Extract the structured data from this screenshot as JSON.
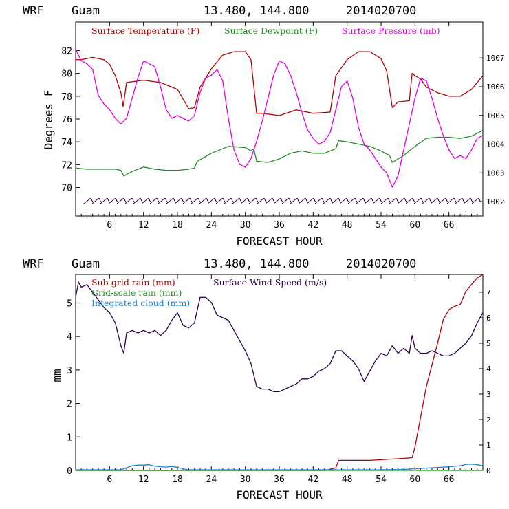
{
  "chart_data": [
    {
      "type": "line",
      "title_left": "WRF",
      "title_place": "Guam",
      "title_coords": "13.480, 144.800",
      "title_date": "2014020700",
      "xlabel": "FORECAST HOUR",
      "ylabel": "Degrees F",
      "xlim": [
        0,
        72
      ],
      "ylim": [
        67.5,
        84.5
      ],
      "ylim_right": [
        1001.5,
        1008.25
      ],
      "x_ticks": [
        6,
        12,
        18,
        24,
        30,
        36,
        42,
        48,
        54,
        60,
        66
      ],
      "y_ticks": [
        70,
        72,
        74,
        76,
        78,
        80,
        82
      ],
      "y_ticks_right": [
        1002,
        1003,
        1004,
        1005,
        1006,
        1007
      ],
      "legend": [
        {
          "label": "Surface Temperature (F)",
          "color": "#b00000"
        },
        {
          "label": "Surface Dewpoint (F)",
          "color": "#228b22"
        },
        {
          "label": "Surface Pressure (mb)",
          "color": "#e000e0"
        }
      ],
      "series": [
        {
          "name": "Surface Temperature (F)",
          "axis": "left",
          "color": "#b00000",
          "x": [
            0,
            1,
            3,
            5,
            6,
            7,
            8,
            8.4,
            9,
            12,
            15,
            18,
            20,
            21,
            22,
            24,
            26,
            28,
            30,
            31,
            32,
            33,
            36,
            39,
            42,
            45,
            46,
            48,
            50,
            52,
            54,
            55,
            56,
            57,
            59,
            59.5,
            60,
            61,
            62,
            64,
            66,
            68,
            70,
            71,
            72
          ],
          "y": [
            81.2,
            81.2,
            81.4,
            81.2,
            80.8,
            79.8,
            78.3,
            77.1,
            79.2,
            79.4,
            79.2,
            78.6,
            76.9,
            77.0,
            78.8,
            80.4,
            81.6,
            81.9,
            81.9,
            81.2,
            76.5,
            76.5,
            76.3,
            76.8,
            76.5,
            76.6,
            79.8,
            81.2,
            81.9,
            81.9,
            81.3,
            80.2,
            77.0,
            77.5,
            77.6,
            80.0,
            79.8,
            79.5,
            78.8,
            78.3,
            78.0,
            78.0,
            78.6,
            79.2,
            79.8
          ]
        },
        {
          "name": "Surface Dewpoint (F)",
          "axis": "left",
          "color": "#228b22",
          "x": [
            0,
            2,
            4,
            6,
            7,
            8,
            8.5,
            10,
            12,
            14,
            16,
            18,
            20,
            21,
            21.5,
            24,
            27,
            30,
            31,
            31.5,
            32,
            34,
            36,
            38,
            40,
            42,
            44,
            46,
            46.5,
            48,
            50,
            52,
            54,
            55.5,
            56,
            58,
            60,
            62,
            64,
            66,
            68,
            70,
            72
          ],
          "y": [
            71.7,
            71.6,
            71.6,
            71.6,
            71.6,
            71.5,
            71.0,
            71.4,
            71.8,
            71.6,
            71.5,
            71.5,
            71.6,
            71.7,
            72.3,
            73.0,
            73.6,
            73.5,
            73.2,
            73.4,
            72.3,
            72.2,
            72.5,
            73.0,
            73.2,
            73.0,
            73.0,
            73.4,
            74.1,
            74.0,
            73.8,
            73.6,
            73.2,
            72.8,
            72.2,
            72.8,
            73.6,
            74.3,
            74.4,
            74.4,
            74.3,
            74.5,
            75.0
          ]
        },
        {
          "name": "Surface Pressure (mb)",
          "axis": "right",
          "color": "#e000e0",
          "x": [
            0,
            0.5,
            1,
            2,
            3,
            4,
            5,
            6,
            7,
            8,
            9,
            10,
            11,
            12,
            13,
            14,
            15,
            16,
            17,
            18,
            19,
            20,
            21,
            22,
            23,
            24,
            25,
            26,
            27,
            28,
            29,
            30,
            31,
            32,
            33,
            34,
            35,
            36,
            37,
            38,
            39,
            40,
            41,
            42,
            43,
            44,
            45,
            46,
            47,
            48,
            49,
            50,
            51,
            52,
            53,
            54,
            55,
            56,
            57,
            58,
            59,
            60,
            61,
            62,
            63,
            64,
            65,
            66,
            67,
            68,
            69,
            70,
            71,
            72
          ],
          "y": [
            1007.3,
            1007.1,
            1006.9,
            1006.8,
            1006.6,
            1005.7,
            1005.4,
            1005.2,
            1004.9,
            1004.7,
            1004.9,
            1005.6,
            1006.3,
            1006.9,
            1006.8,
            1006.7,
            1006.0,
            1005.2,
            1004.9,
            1005.0,
            1004.9,
            1004.8,
            1005.0,
            1005.8,
            1006.3,
            1006.4,
            1006.6,
            1006.2,
            1004.9,
            1003.8,
            1003.3,
            1003.2,
            1003.5,
            1004.1,
            1004.8,
            1005.6,
            1006.4,
            1006.9,
            1006.8,
            1006.4,
            1005.8,
            1005.1,
            1004.5,
            1004.2,
            1004.0,
            1004.1,
            1004.4,
            1005.2,
            1006.0,
            1006.2,
            1005.6,
            1004.6,
            1004.0,
            1003.8,
            1003.5,
            1003.2,
            1003.0,
            1002.5,
            1002.9,
            1003.8,
            1004.7,
            1005.6,
            1006.3,
            1006.2,
            1005.6,
            1004.9,
            1004.3,
            1003.8,
            1003.5,
            1003.6,
            1003.5,
            1003.8,
            1004.2,
            1004.3
          ]
        }
      ]
    },
    {
      "type": "line",
      "title_left": "WRF",
      "title_place": "Guam",
      "title_coords": "13.480, 144.800",
      "title_date": "2014020700",
      "xlabel": "FORECAST HOUR",
      "ylabel": "mm",
      "xlim": [
        0,
        72
      ],
      "ylim": [
        0,
        5.85
      ],
      "ylim_right": [
        0,
        7.7
      ],
      "x_ticks": [
        6,
        12,
        18,
        24,
        30,
        36,
        42,
        48,
        54,
        60,
        66
      ],
      "y_ticks": [
        0,
        1,
        2,
        3,
        4,
        5
      ],
      "y_ticks_right": [
        0,
        1,
        2,
        3,
        4,
        5,
        6,
        7
      ],
      "legend": [
        {
          "label": "Sub-grid rain (mm)",
          "color": "#b00000"
        },
        {
          "label": "Surface Wind Speed (m/s)",
          "color": "#2c0050"
        },
        {
          "label": "Grid-scale rain (mm)",
          "color": "#228b22"
        },
        {
          "label": "Integrated cloud (mm)",
          "color": "#1e80d0"
        }
      ],
      "series": [
        {
          "name": "Sub-grid rain (mm)",
          "axis": "left",
          "color": "#b00000",
          "x": [
            0,
            44,
            45,
            46,
            46.5,
            48,
            50,
            52,
            55,
            58,
            59.5,
            60,
            62,
            64,
            65,
            66,
            67,
            68,
            69,
            70,
            71,
            72
          ],
          "y": [
            0,
            0,
            0.03,
            0.08,
            0.3,
            0.3,
            0.3,
            0.3,
            0.33,
            0.36,
            0.38,
            0.7,
            2.5,
            3.8,
            4.5,
            4.8,
            4.9,
            4.95,
            5.35,
            5.55,
            5.75,
            5.85
          ]
        },
        {
          "name": "Surface Wind Speed (m/s)",
          "axis": "right",
          "color": "#2c0050",
          "x": [
            0,
            0.5,
            1,
            2,
            3,
            4,
            5,
            6,
            7,
            8,
            8.5,
            9,
            10,
            11,
            12,
            13,
            14,
            15,
            16,
            17,
            18,
            19,
            20,
            21,
            22,
            23,
            24,
            25,
            26,
            27,
            28,
            29,
            30,
            31,
            32,
            33,
            34,
            35,
            36,
            37,
            38,
            39,
            40,
            41,
            42,
            43,
            44,
            45,
            46,
            47,
            48,
            49,
            50,
            51,
            52,
            53,
            54,
            55,
            56,
            57,
            58,
            59,
            59.5,
            60,
            61,
            62,
            63,
            64,
            65,
            66,
            67,
            68,
            69,
            70,
            71,
            72
          ],
          "y": [
            6.8,
            7.4,
            7.2,
            7.3,
            7.0,
            6.7,
            6.4,
            6.2,
            5.8,
            4.9,
            4.6,
            5.4,
            5.5,
            5.4,
            5.5,
            5.4,
            5.5,
            5.3,
            5.5,
            5.9,
            6.2,
            5.7,
            5.6,
            5.8,
            6.8,
            6.8,
            6.6,
            6.1,
            6.0,
            5.9,
            5.5,
            5.1,
            4.7,
            4.2,
            3.3,
            3.2,
            3.2,
            3.1,
            3.1,
            3.2,
            3.3,
            3.4,
            3.6,
            3.6,
            3.7,
            3.9,
            4.0,
            4.2,
            4.7,
            4.7,
            4.5,
            4.3,
            4.0,
            3.5,
            3.9,
            4.3,
            4.6,
            4.5,
            4.9,
            4.6,
            4.8,
            4.6,
            5.3,
            4.8,
            4.6,
            4.6,
            4.7,
            4.6,
            4.5,
            4.5,
            4.6,
            4.8,
            5.0,
            5.3,
            5.8,
            6.2
          ]
        },
        {
          "name": "Grid-scale rain (mm)",
          "axis": "left",
          "color": "#228b22",
          "x": [
            0,
            72
          ],
          "y": [
            0,
            0
          ]
        },
        {
          "name": "Integrated cloud (mm)",
          "axis": "left",
          "color": "#1e80d0",
          "x": [
            0,
            8,
            9,
            10,
            11,
            12,
            13,
            14,
            15,
            16,
            17,
            18,
            19,
            20,
            24,
            30,
            36,
            42,
            48,
            54,
            58,
            60,
            62,
            64,
            66,
            68,
            69,
            70,
            71,
            72
          ],
          "y": [
            0.02,
            0.02,
            0.08,
            0.14,
            0.16,
            0.16,
            0.17,
            0.13,
            0.11,
            0.1,
            0.12,
            0.09,
            0.05,
            0.02,
            0.02,
            0.02,
            0.02,
            0.02,
            0.02,
            0.02,
            0.03,
            0.05,
            0.07,
            0.09,
            0.11,
            0.14,
            0.18,
            0.19,
            0.17,
            0.14
          ]
        }
      ]
    }
  ]
}
